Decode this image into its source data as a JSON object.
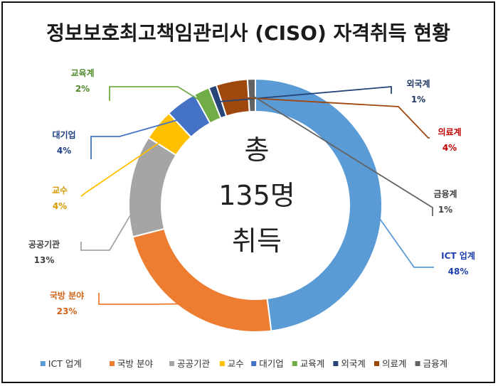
{
  "chart_data": {
    "type": "donut",
    "title": "정보보호최고책임관리사 (CISO)  자격취득 현황",
    "center_text": [
      "총",
      "135명",
      "취득"
    ],
    "slices": [
      {
        "name": "ICT 업계",
        "value": 48,
        "label": "48%",
        "color": "#5B9BD5",
        "label_color": "#1F3FAE"
      },
      {
        "name": "국방 분야",
        "value": 23,
        "label": "23%",
        "color": "#ED7D31",
        "label_color": "#D0651A"
      },
      {
        "name": "공공기관",
        "value": 13,
        "label": "13%",
        "color": "#A5A5A5",
        "label_color": "#404040"
      },
      {
        "name": "교수",
        "value": 4,
        "label": "4%",
        "color": "#FFC000",
        "label_color": "#D49A00"
      },
      {
        "name": "대기업",
        "value": 4,
        "label": "4%",
        "color": "#4472C4",
        "label_color": "#1F3F86"
      },
      {
        "name": "교육계",
        "value": 2,
        "label": "2%",
        "color": "#70AD47",
        "label_color": "#4E8A2A"
      },
      {
        "name": "외국계",
        "value": 1,
        "label": "1%",
        "color": "#264478",
        "label_color": "#1F3864"
      },
      {
        "name": "의료계",
        "value": 4,
        "label": "4%",
        "color": "#9E480E",
        "label_color": "#C00000"
      },
      {
        "name": "금융계",
        "value": 1,
        "label": "1%",
        "color": "#636363",
        "label_color": "#404040"
      }
    ],
    "legend": [
      "ICT 업계",
      "국방 분야",
      "공공기관",
      "교수",
      "대기업",
      "교육계",
      "외국계",
      "의료계",
      "금융계"
    ],
    "legend_position": "bottom"
  }
}
